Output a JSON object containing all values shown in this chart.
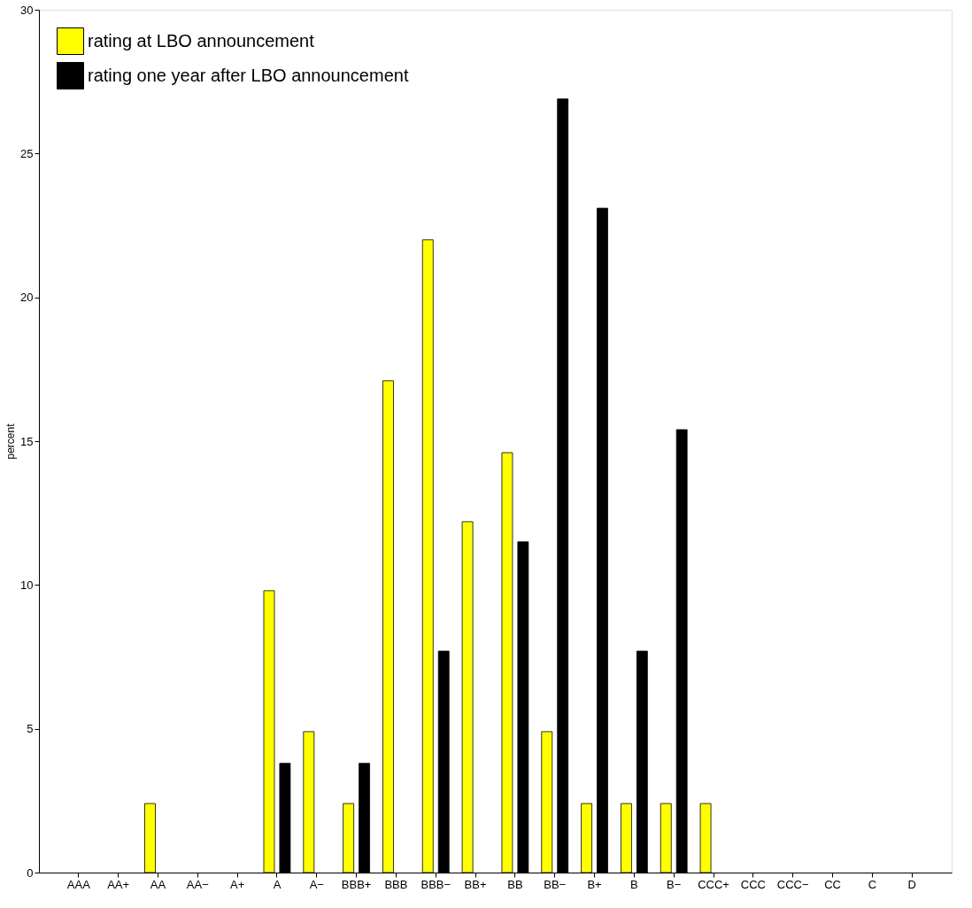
{
  "chart_data": {
    "type": "bar",
    "ylabel": "percent",
    "categories": [
      "AAA",
      "AA+",
      "AA",
      "AA−",
      "A+",
      "A",
      "A−",
      "BBB+",
      "BBB",
      "BBB−",
      "BB+",
      "BB",
      "BB−",
      "B+",
      "B",
      "B−",
      "CCC+",
      "CCC",
      "CCC−",
      "CC",
      "C",
      "D"
    ],
    "series": [
      {
        "name": "rating at LBO announcement",
        "color": "#ffff00",
        "values": [
          0,
          0,
          2.4,
          0,
          0,
          9.8,
          4.9,
          2.4,
          17.1,
          22.0,
          12.2,
          14.6,
          4.9,
          2.4,
          2.4,
          2.4,
          2.4,
          0,
          0,
          0,
          0,
          0
        ]
      },
      {
        "name": "rating one year after LBO announcement",
        "color": "#000000",
        "values": [
          0,
          0,
          0,
          0,
          0,
          3.8,
          0,
          3.8,
          0,
          7.7,
          0,
          11.5,
          26.9,
          23.1,
          7.7,
          15.4,
          0,
          0,
          0,
          0,
          0,
          0
        ]
      }
    ],
    "ylim": [
      0,
      30
    ],
    "yticks": [
      0,
      5,
      10,
      15,
      20,
      25,
      30
    ],
    "grid": false,
    "legend": "top left"
  }
}
